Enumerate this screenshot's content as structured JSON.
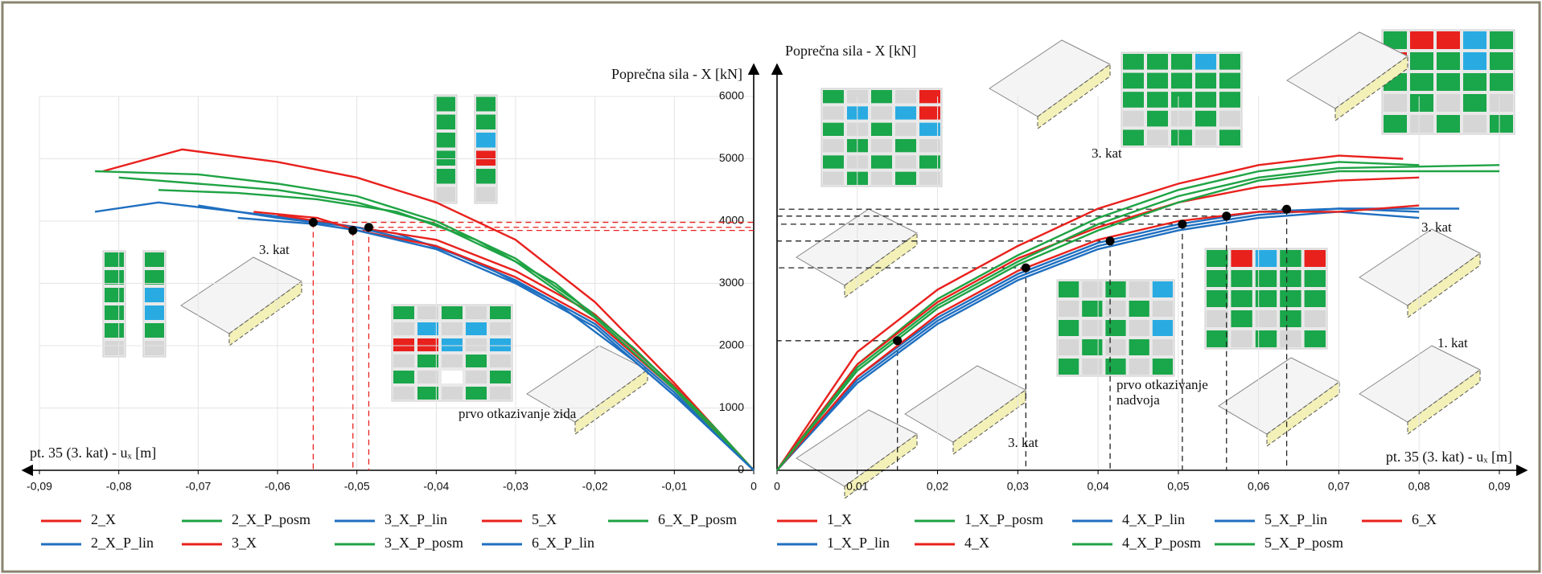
{
  "chart_data": [
    {
      "type": "line",
      "ylabel": "Poprečna sila - X [kN]",
      "xlabel": "pt. 35 (3. kat) - uₓ [m]",
      "xlim": [
        -0.09,
        0
      ],
      "ylim": [
        0,
        6000
      ],
      "grid": true,
      "legend": "bottom",
      "xticks": [
        {
          "value": -0.09,
          "label": "-0,09"
        },
        {
          "value": -0.08,
          "label": "-0,08"
        },
        {
          "value": -0.07,
          "label": "-0,07"
        },
        {
          "value": -0.06,
          "label": "-0,06"
        },
        {
          "value": -0.05,
          "label": "-0,05"
        },
        {
          "value": -0.04,
          "label": "-0,04"
        },
        {
          "value": -0.03,
          "label": "-0,03"
        },
        {
          "value": -0.02,
          "label": "-0,02"
        },
        {
          "value": -0.01,
          "label": "-0,01"
        },
        0
      ],
      "yticks": [
        0,
        1000,
        2000,
        3000,
        4000,
        5000,
        6000
      ],
      "series": [
        {
          "name": "2_X",
          "color": "#e8211d",
          "x": [
            -0.082,
            -0.072,
            -0.06,
            -0.05,
            -0.04,
            -0.03,
            -0.02,
            -0.01,
            0
          ],
          "values": [
            4800,
            5150,
            4950,
            4700,
            4300,
            3700,
            2700,
            1400,
            0
          ]
        },
        {
          "name": "2_X_P_posm",
          "color": "#1fa344",
          "x": [
            -0.083,
            -0.07,
            -0.06,
            -0.05,
            -0.04,
            -0.03,
            -0.02,
            -0.01,
            0
          ],
          "values": [
            4800,
            4750,
            4600,
            4400,
            4000,
            3400,
            2500,
            1350,
            0
          ]
        },
        {
          "name": "3_X_P_lin",
          "color": "#1f6fc0",
          "x": [
            -0.083,
            -0.075,
            -0.065,
            -0.055,
            -0.045,
            -0.035,
            -0.025,
            -0.015,
            -0.005,
            0
          ],
          "values": [
            4150,
            4300,
            4150,
            4000,
            3800,
            3350,
            2700,
            1750,
            650,
            0
          ]
        },
        {
          "name": "5_X",
          "color": "#e8211d",
          "x": [
            -0.06,
            -0.055,
            -0.05,
            -0.04,
            -0.03,
            -0.02,
            -0.01,
            0
          ],
          "values": [
            4100,
            4000,
            3900,
            3700,
            3200,
            2500,
            1350,
            0
          ]
        },
        {
          "name": "6_X_P_posm",
          "color": "#1fa344",
          "x": [
            -0.075,
            -0.065,
            -0.055,
            -0.045,
            -0.035,
            -0.025,
            -0.015,
            -0.005,
            0
          ],
          "values": [
            4500,
            4450,
            4350,
            4150,
            3700,
            3000,
            1950,
            700,
            0
          ]
        },
        {
          "name": "2_X_P_lin",
          "color": "#1f6fc0",
          "x": [
            -0.07,
            -0.06,
            -0.05,
            -0.04,
            -0.03,
            -0.02,
            -0.01,
            0
          ],
          "values": [
            4250,
            4050,
            3900,
            3600,
            3050,
            2350,
            1250,
            0
          ]
        },
        {
          "name": "3_X",
          "color": "#e8211d",
          "x": [
            -0.063,
            -0.055,
            -0.05,
            -0.04,
            -0.03,
            -0.02,
            -0.01,
            0
          ],
          "values": [
            4150,
            4050,
            3850,
            3600,
            3100,
            2400,
            1300,
            0
          ]
        },
        {
          "name": "3_X_P_posm",
          "color": "#1fa344",
          "x": [
            -0.08,
            -0.07,
            -0.06,
            -0.05,
            -0.04,
            -0.03,
            -0.02,
            -0.01,
            0
          ],
          "values": [
            4700,
            4600,
            4500,
            4300,
            3950,
            3350,
            2450,
            1300,
            0
          ]
        },
        {
          "name": "6_X_P_lin",
          "color": "#1f6fc0",
          "x": [
            -0.065,
            -0.055,
            -0.05,
            -0.04,
            -0.03,
            -0.02,
            -0.01,
            0
          ],
          "values": [
            4050,
            3950,
            3850,
            3550,
            3000,
            2300,
            1200,
            0
          ]
        }
      ],
      "markers": {
        "x": [
          -0.0555,
          -0.0505,
          -0.0485
        ],
        "y": [
          3980,
          3850,
          3900
        ]
      },
      "annotations": [
        "3. kat",
        "prvo otkazivanje zida"
      ]
    },
    {
      "type": "line",
      "ylabel": "Poprečna sila - X [kN]",
      "xlabel": "pt. 35 (3. kat) - uₓ [m]",
      "xlim": [
        0,
        0.09
      ],
      "ylim": [
        0,
        6000
      ],
      "grid": true,
      "legend": "bottom",
      "xticks": [
        0,
        {
          "value": 0.01,
          "label": "0,01"
        },
        {
          "value": 0.02,
          "label": "0,02"
        },
        {
          "value": 0.03,
          "label": "0,03"
        },
        {
          "value": 0.04,
          "label": "0,04"
        },
        {
          "value": 0.05,
          "label": "0,05"
        },
        {
          "value": 0.06,
          "label": "0,06"
        },
        {
          "value": 0.07,
          "label": "0,07"
        },
        {
          "value": 0.08,
          "label": "0,08"
        },
        {
          "value": 0.09,
          "label": "0,09"
        }
      ],
      "series": [
        {
          "name": "1_X",
          "color": "#e8211d",
          "x": [
            0,
            0.01,
            0.02,
            0.03,
            0.04,
            0.05,
            0.06,
            0.07,
            0.078
          ],
          "values": [
            0,
            1900,
            2900,
            3600,
            4200,
            4600,
            4900,
            5050,
            5000
          ]
        },
        {
          "name": "1_X_P_posm",
          "color": "#1fa344",
          "x": [
            0,
            0.01,
            0.02,
            0.03,
            0.04,
            0.05,
            0.06,
            0.07,
            0.08
          ],
          "values": [
            0,
            1700,
            2750,
            3450,
            4050,
            4500,
            4800,
            4950,
            4900
          ]
        },
        {
          "name": "4_X_P_lin",
          "color": "#1f6fc0",
          "x": [
            0,
            0.01,
            0.02,
            0.03,
            0.04,
            0.05,
            0.06,
            0.07,
            0.085
          ],
          "values": [
            0,
            1450,
            2400,
            3100,
            3600,
            3900,
            4100,
            4200,
            4200
          ]
        },
        {
          "name": "5_X_P_lin",
          "color": "#1f6fc0",
          "x": [
            0,
            0.01,
            0.02,
            0.03,
            0.04,
            0.05,
            0.06,
            0.07,
            0.08
          ],
          "values": [
            0,
            1400,
            2350,
            3050,
            3550,
            3850,
            4050,
            4150,
            4050
          ]
        },
        {
          "name": "6_X",
          "color": "#e8211d",
          "x": [
            0,
            0.01,
            0.02,
            0.03,
            0.04,
            0.05,
            0.06,
            0.07,
            0.08
          ],
          "values": [
            0,
            1700,
            2700,
            3400,
            3900,
            4300,
            4550,
            4650,
            4700
          ]
        },
        {
          "name": "1_X_P_lin",
          "color": "#1f6fc0",
          "x": [
            0,
            0.01,
            0.02,
            0.03,
            0.04,
            0.05,
            0.06,
            0.07,
            0.08
          ],
          "values": [
            0,
            1500,
            2450,
            3150,
            3650,
            3950,
            4150,
            4200,
            4150
          ]
        },
        {
          "name": "4_X",
          "color": "#e8211d",
          "x": [
            0,
            0.01,
            0.02,
            0.03,
            0.04,
            0.05,
            0.06,
            0.07,
            0.08
          ],
          "values": [
            0,
            1500,
            2500,
            3200,
            3700,
            4000,
            4150,
            4150,
            4250
          ]
        },
        {
          "name": "4_X_P_posm",
          "color": "#1fa344",
          "x": [
            0,
            0.01,
            0.02,
            0.03,
            0.04,
            0.05,
            0.06,
            0.07,
            0.09
          ],
          "values": [
            0,
            1650,
            2650,
            3350,
            3950,
            4400,
            4700,
            4850,
            4900
          ]
        },
        {
          "name": "5_X_P_posm",
          "color": "#1fa344",
          "x": [
            0,
            0.01,
            0.02,
            0.03,
            0.04,
            0.05,
            0.06,
            0.07,
            0.09
          ],
          "values": [
            0,
            1600,
            2600,
            3300,
            3850,
            4300,
            4650,
            4800,
            4800
          ]
        }
      ],
      "markers": {
        "x": [
          0.015,
          0.031,
          0.0415,
          0.0505,
          0.056,
          0.0635
        ],
        "y": [
          2080,
          3250,
          3680,
          3950,
          4080,
          4190
        ]
      },
      "annotations": [
        "3. kat",
        [
          "prvo otkazivanje",
          "nadvoja"
        ],
        "3. kat",
        "1. kat",
        "3. kat"
      ]
    }
  ]
}
